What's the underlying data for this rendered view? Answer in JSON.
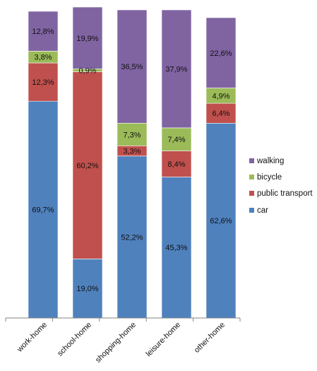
{
  "chart_data": {
    "type": "bar",
    "stacked": true,
    "normalized": true,
    "categories": [
      "work-home",
      "school-home",
      "shopping-home",
      "leisure-home",
      "other-home"
    ],
    "series": [
      {
        "name": "car",
        "color": "#4f81bd",
        "values": [
          69.7,
          19.0,
          52.2,
          45.3,
          62.6
        ],
        "labels": [
          "69,7%",
          "19,0%",
          "52,2%",
          "45,3%",
          "62,6%"
        ]
      },
      {
        "name": "public transport",
        "color": "#c0504d",
        "values": [
          12.3,
          60.2,
          3.3,
          8.4,
          6.4
        ],
        "labels": [
          "12,3%",
          "60,2%",
          "3,3%",
          "8,4%",
          "6,4%"
        ]
      },
      {
        "name": "bicycle",
        "color": "#9bbb59",
        "values": [
          3.8,
          0.9,
          7.3,
          7.4,
          4.9
        ],
        "labels": [
          "3,8%",
          "0,9%",
          "7,3%",
          "7,4%",
          "4,9%"
        ]
      },
      {
        "name": "walking",
        "color": "#8064a2",
        "values": [
          12.8,
          19.9,
          36.5,
          37.9,
          22.6
        ],
        "labels": [
          "12,8%",
          "19,9%",
          "36,5%",
          "37,9%",
          "22,6%"
        ]
      }
    ],
    "legend_order": [
      "walking",
      "bicycle",
      "public transport",
      "car"
    ],
    "legend_position": "right",
    "grid": false,
    "title": "",
    "xlabel": "",
    "ylabel": ""
  }
}
